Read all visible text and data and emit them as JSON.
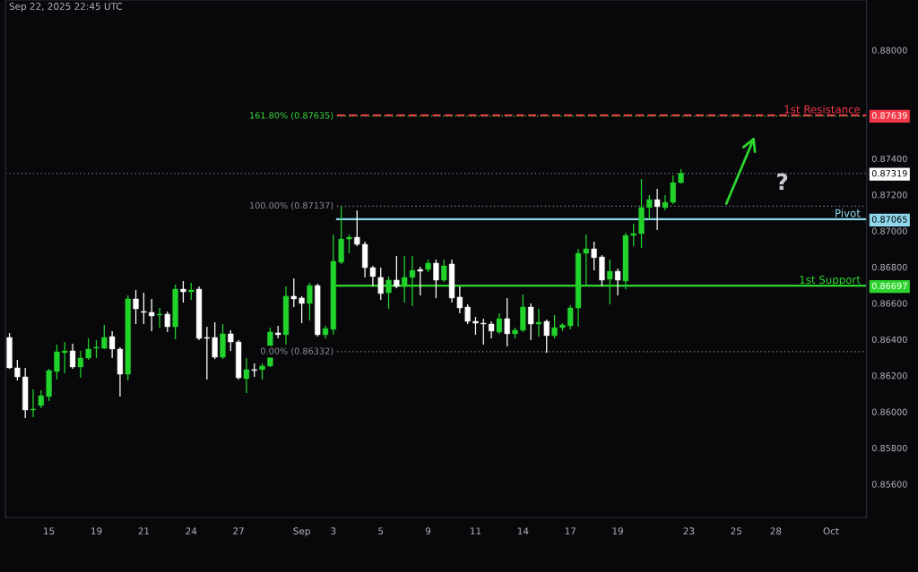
{
  "chart_data": {
    "type": "candlestick",
    "title": "Sep 22, 2025 22:45 UTC",
    "categories": [
      null,
      null,
      null,
      null,
      null,
      "15",
      null,
      null,
      null,
      null,
      null,
      "19",
      null,
      null,
      null,
      null,
      null,
      "21",
      null,
      null,
      null,
      null,
      null,
      "24",
      null,
      null,
      null,
      null,
      null,
      "27",
      null,
      null,
      null,
      null,
      null,
      null,
      null,
      "Sep",
      null,
      null,
      null,
      "3",
      null,
      null,
      null,
      null,
      null,
      "5",
      null,
      null,
      null,
      null,
      null,
      "9",
      null,
      null,
      null,
      null,
      null,
      "11",
      null,
      null,
      null,
      null,
      null,
      "14",
      null,
      null,
      null,
      null,
      null,
      "17",
      null,
      null,
      null,
      null,
      null,
      "19",
      null,
      null,
      null,
      null,
      null,
      null,
      null,
      null,
      "23",
      null,
      null,
      null,
      null,
      null,
      "25",
      null,
      null,
      null,
      null,
      "28",
      null,
      null,
      null,
      null,
      null,
      null,
      "Oct",
      null,
      null,
      null,
      null
    ],
    "ohlc": [
      [
        0.86411,
        0.86436,
        0.86238,
        0.86243
      ],
      [
        0.86243,
        0.86287,
        0.86173,
        0.86193
      ],
      [
        0.86193,
        0.86243,
        0.85965,
        0.8601
      ],
      [
        0.8601,
        0.86124,
        0.8597,
        0.86015
      ],
      [
        0.86035,
        0.86119,
        0.8602,
        0.86089
      ],
      [
        0.86084,
        0.86238,
        0.8606,
        0.86228
      ],
      [
        0.86223,
        0.86371,
        0.86178,
        0.86332
      ],
      [
        0.86327,
        0.86386,
        0.86213,
        0.86337
      ],
      [
        0.86337,
        0.86376,
        0.86238,
        0.86248
      ],
      [
        0.86248,
        0.86337,
        0.86188,
        0.86297
      ],
      [
        0.86297,
        0.86406,
        0.86287,
        0.86347
      ],
      [
        0.86352,
        0.86396,
        0.86297,
        0.86357
      ],
      [
        0.86352,
        0.8648,
        0.86347,
        0.86411
      ],
      [
        0.86416,
        0.86446,
        0.86297,
        0.86347
      ],
      [
        0.86347,
        0.86357,
        0.86084,
        0.86208
      ],
      [
        0.86208,
        0.86644,
        0.86173,
        0.86624
      ],
      [
        0.86624,
        0.86673,
        0.86485,
        0.86569
      ],
      [
        0.86555,
        0.86658,
        0.86485,
        0.8655
      ],
      [
        0.8655,
        0.86624,
        0.86446,
        0.8653
      ],
      [
        0.86535,
        0.86574,
        0.86465,
        0.8654
      ],
      [
        0.8654,
        0.86555,
        0.86441,
        0.8647
      ],
      [
        0.8647,
        0.86703,
        0.86401,
        0.86678
      ],
      [
        0.86678,
        0.86723,
        0.86604,
        0.86663
      ],
      [
        0.86663,
        0.86713,
        0.86619,
        0.86673
      ],
      [
        0.86678,
        0.86693,
        0.86396,
        0.86406
      ],
      [
        0.86411,
        0.8647,
        0.86178,
        0.86406
      ],
      [
        0.86411,
        0.86495,
        0.86292,
        0.86302
      ],
      [
        0.86302,
        0.86485,
        0.86292,
        0.86431
      ],
      [
        0.86431,
        0.86451,
        0.86337,
        0.86386
      ],
      [
        0.86386,
        0.86396,
        0.86178,
        0.86188
      ],
      [
        0.86183,
        0.86297,
        0.86104,
        0.86233
      ],
      [
        0.86233,
        0.86267,
        0.86193,
        0.86228
      ],
      [
        0.86233,
        0.86267,
        0.86178,
        0.86253
      ],
      [
        0.86253,
        0.86465,
        0.86248,
        0.86441
      ],
      [
        0.86436,
        0.86475,
        0.86406,
        0.86426
      ],
      [
        0.86426,
        0.86693,
        0.86371,
        0.86639
      ],
      [
        0.86639,
        0.86738,
        0.86579,
        0.86624
      ],
      [
        0.86629,
        0.86639,
        0.8649,
        0.86599
      ],
      [
        0.86599,
        0.86713,
        0.86505,
        0.86698
      ],
      [
        0.86698,
        0.86708,
        0.86416,
        0.86426
      ],
      [
        0.86426,
        0.86475,
        0.86406,
        0.8646
      ],
      [
        0.86456,
        0.8698,
        0.86426,
        0.86832
      ],
      [
        0.86827,
        0.87137,
        0.86817,
        0.86955
      ],
      [
        0.86955,
        0.8698,
        0.86876,
        0.86965
      ],
      [
        0.86965,
        0.87114,
        0.86916,
        0.86926
      ],
      [
        0.86926,
        0.86941,
        0.86743,
        0.86797
      ],
      [
        0.86797,
        0.86807,
        0.86693,
        0.86748
      ],
      [
        0.86743,
        0.86797,
        0.86619,
        0.86654
      ],
      [
        0.86658,
        0.86748,
        0.86569,
        0.86728
      ],
      [
        0.86728,
        0.86861,
        0.86683,
        0.86693
      ],
      [
        0.86693,
        0.86861,
        0.86604,
        0.86743
      ],
      [
        0.86743,
        0.86861,
        0.86584,
        0.86782
      ],
      [
        0.86787,
        0.86802,
        0.86644,
        0.86777
      ],
      [
        0.86787,
        0.86842,
        0.86772,
        0.86822
      ],
      [
        0.86822,
        0.86842,
        0.86629,
        0.86728
      ],
      [
        0.86728,
        0.86842,
        0.86718,
        0.86807
      ],
      [
        0.86817,
        0.86842,
        0.86604,
        0.86629
      ],
      [
        0.86634,
        0.86693,
        0.86545,
        0.86574
      ],
      [
        0.86579,
        0.86594,
        0.86485,
        0.865
      ],
      [
        0.865,
        0.86525,
        0.86426,
        0.8649
      ],
      [
        0.8649,
        0.86515,
        0.86371,
        0.86485
      ],
      [
        0.86485,
        0.865,
        0.86406,
        0.86446
      ],
      [
        0.86441,
        0.86545,
        0.86431,
        0.86515
      ],
      [
        0.86515,
        0.86629,
        0.86361,
        0.86431
      ],
      [
        0.86431,
        0.86465,
        0.86406,
        0.86451
      ],
      [
        0.86451,
        0.86649,
        0.86441,
        0.86579
      ],
      [
        0.86579,
        0.86599,
        0.86396,
        0.86485
      ],
      [
        0.86485,
        0.86569,
        0.86416,
        0.86495
      ],
      [
        0.865,
        0.8651,
        0.86327,
        0.86421
      ],
      [
        0.86421,
        0.86535,
        0.86406,
        0.86465
      ],
      [
        0.86465,
        0.8649,
        0.86446,
        0.8648
      ],
      [
        0.86475,
        0.86589,
        0.86456,
        0.86574
      ],
      [
        0.86574,
        0.86901,
        0.8647,
        0.86876
      ],
      [
        0.86876,
        0.8698,
        0.86703,
        0.86901
      ],
      [
        0.86901,
        0.86941,
        0.86782,
        0.86852
      ],
      [
        0.86856,
        0.86866,
        0.86693,
        0.86728
      ],
      [
        0.86733,
        0.86842,
        0.86594,
        0.86777
      ],
      [
        0.86777,
        0.86792,
        0.86644,
        0.86728
      ],
      [
        0.86723,
        0.8699,
        0.86678,
        0.86975
      ],
      [
        0.86975,
        0.8704,
        0.86916,
        0.86985
      ],
      [
        0.86985,
        0.87287,
        0.86906,
        0.87129
      ],
      [
        0.87129,
        0.87198,
        0.87064,
        0.87173
      ],
      [
        0.87173,
        0.87233,
        0.87005,
        0.87134
      ],
      [
        0.87129,
        0.87198,
        0.87114,
        0.87158
      ],
      [
        0.87158,
        0.87307,
        0.87149,
        0.87267
      ],
      [
        0.87267,
        0.87342,
        0.87262,
        0.87319
      ],
      null,
      null,
      null,
      null,
      null,
      null,
      null,
      null,
      null,
      null,
      null,
      null,
      null,
      null,
      null,
      null,
      null,
      null,
      null,
      null,
      null,
      null,
      null
    ],
    "colors": [
      "#ffffff",
      "#ffffff",
      "#ffffff",
      "#22d32b",
      "#22d32b",
      "#22d32b",
      "#22d32b",
      "#22d32b",
      "#ffffff",
      "#22d32b",
      "#22d32b",
      "#22d32b",
      "#22d32b",
      "#ffffff",
      "#ffffff",
      "#22d32b",
      "#ffffff",
      "#ffffff",
      "#ffffff",
      "#22d32b",
      "#ffffff",
      "#22d32b",
      "#ffffff",
      "#22d32b",
      "#ffffff",
      "#ffffff",
      "#ffffff",
      "#22d32b",
      "#ffffff",
      "#ffffff",
      "#22d32b",
      "#ffffff",
      "#22d32b",
      "#22d32b",
      "#ffffff",
      "#22d32b",
      "#ffffff",
      "#ffffff",
      "#22d32b",
      "#ffffff",
      "#22d32b",
      "#22d32b",
      "#22d32b",
      "#22d32b",
      "#ffffff",
      "#ffffff",
      "#ffffff",
      "#ffffff",
      "#22d32b",
      "#ffffff",
      "#22d32b",
      "#22d32b",
      "#ffffff",
      "#22d32b",
      "#ffffff",
      "#22d32b",
      "#ffffff",
      "#ffffff",
      "#ffffff",
      "#ffffff",
      "#ffffff",
      "#ffffff",
      "#22d32b",
      "#ffffff",
      "#22d32b",
      "#22d32b",
      "#ffffff",
      "#22d32b",
      "#ffffff",
      "#22d32b",
      "#22d32b",
      "#22d32b",
      "#22d32b",
      "#22d32b",
      "#ffffff",
      "#ffffff",
      "#22d32b",
      "#ffffff",
      "#22d32b",
      "#22d32b",
      "#22d32b",
      "#22d32b",
      "#ffffff",
      "#22d32b",
      "#22d32b",
      "#22d32b",
      null,
      null,
      null,
      null,
      null,
      null,
      null,
      null,
      null,
      null,
      null,
      null,
      null,
      null,
      null,
      null,
      null,
      null,
      null,
      null,
      null,
      null,
      null
    ],
    "ylim": [
      0.85416,
      0.88277
    ],
    "yticks": [
      {
        "value": 0.856,
        "label": "0.85600"
      },
      {
        "value": 0.858,
        "label": "0.85800"
      },
      {
        "value": 0.86,
        "label": "0.86000"
      },
      {
        "value": 0.862,
        "label": "0.86200"
      },
      {
        "value": 0.864,
        "label": "0.86400"
      },
      {
        "value": 0.866,
        "label": "0.86600"
      },
      {
        "value": 0.86697,
        "label": "0.86697"
      },
      {
        "value": 0.868,
        "label": "0.86800"
      },
      {
        "value": 0.87,
        "label": "0.87000"
      },
      {
        "value": 0.87065,
        "label": "0.87065"
      },
      {
        "value": 0.872,
        "label": "0.87200"
      },
      {
        "value": 0.87319,
        "label": "0.87319"
      },
      {
        "value": 0.874,
        "label": "0.87400"
      },
      {
        "value": 0.87639,
        "label": "0.87639"
      },
      {
        "value": 0.88,
        "label": "0.88000"
      }
    ],
    "ref_lines": [
      {
        "axis": "y",
        "value": 0.87639,
        "label": "1st Resistance",
        "color": "#f23645",
        "line_style": "dashed"
      },
      {
        "axis": "y",
        "value": 0.87065,
        "label": "Pivot",
        "color": "#8fd8ec",
        "line_style": "solid"
      },
      {
        "axis": "y",
        "value": 0.86697,
        "label": "1st Support",
        "color": "#2ed52e",
        "line_style": "solid"
      },
      {
        "axis": "y",
        "value": 0.87635,
        "label": "161.80% (0.87635)",
        "color": "#3bd63b",
        "line_style": "dotted"
      },
      {
        "axis": "y",
        "value": 0.87137,
        "label": "100.00% (0.87137)",
        "color": "#8a8d96",
        "line_style": "dotted"
      },
      {
        "axis": "y",
        "value": 0.86332,
        "label": "0.00% (0.86332)",
        "color": "#8a8d96",
        "line_style": "dotted"
      },
      {
        "axis": "y",
        "value": 0.87319,
        "label": null,
        "color": "#787b86",
        "line_style": "dotted"
      }
    ],
    "annotations": [
      "?"
    ]
  }
}
